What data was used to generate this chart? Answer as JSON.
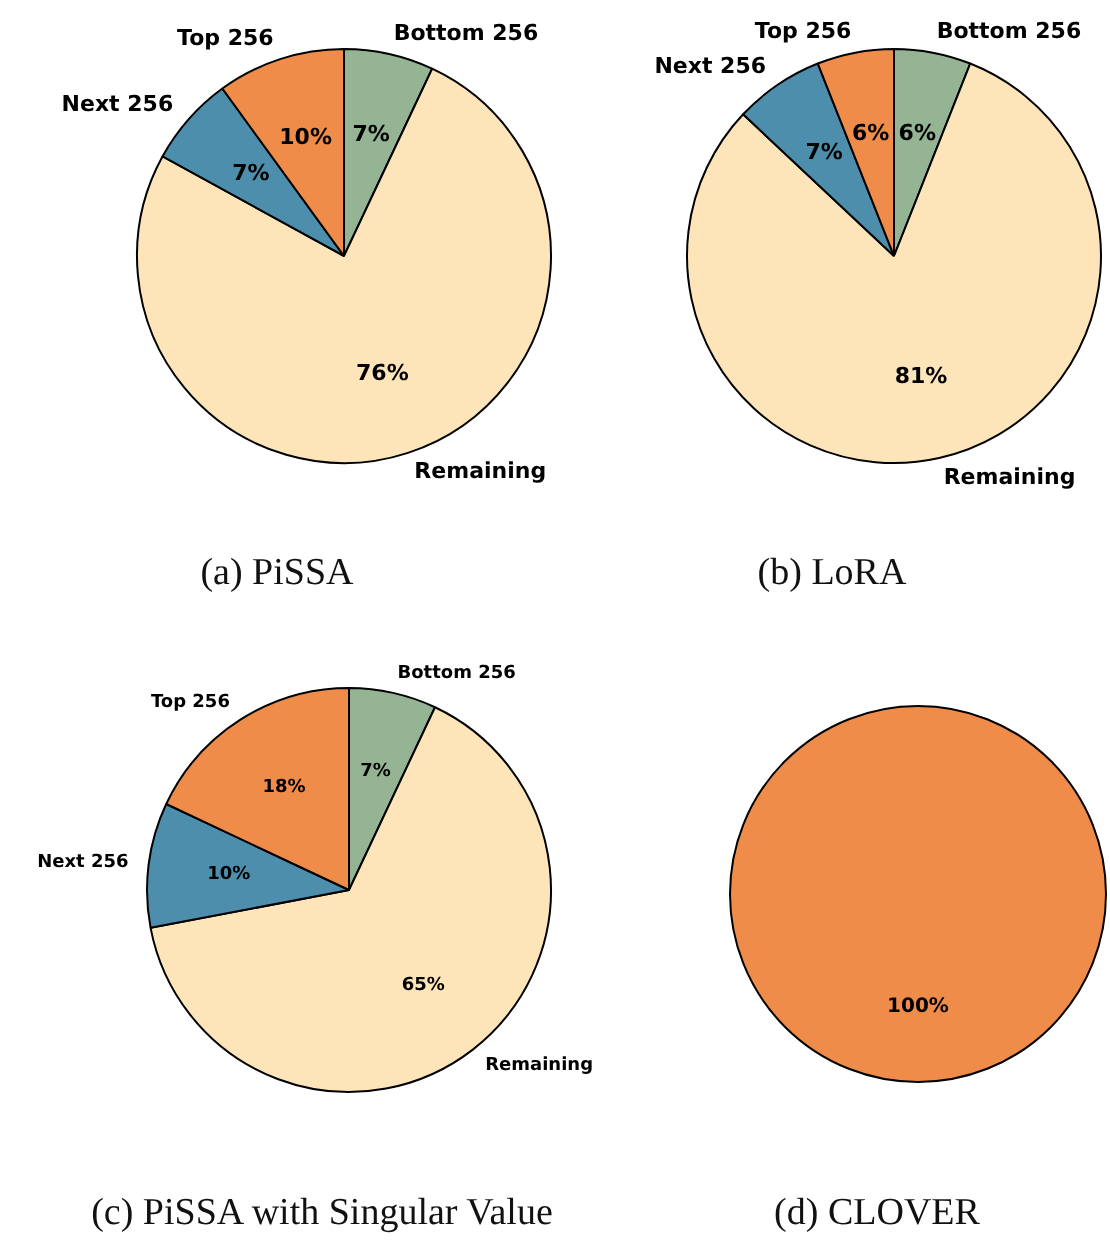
{
  "chart_data": [
    {
      "type": "pie",
      "title": "(a) PiSSA",
      "categories": [
        "Bottom 256",
        "Remaining",
        "Next 256",
        "Top 256"
      ],
      "values": [
        7,
        76,
        7,
        10
      ],
      "colors": [
        "#94b494",
        "#fde5b9",
        "#4e8ead",
        "#ef8c4a"
      ],
      "value_labels": [
        "7%",
        "76%",
        "7%",
        "10%"
      ]
    },
    {
      "type": "pie",
      "title": "(b) LoRA",
      "categories": [
        "Bottom 256",
        "Remaining",
        "Next 256",
        "Top 256"
      ],
      "values": [
        6,
        81,
        7,
        6
      ],
      "colors": [
        "#94b494",
        "#fde5b9",
        "#4e8ead",
        "#ef8c4a"
      ],
      "value_labels": [
        "6%",
        "81%",
        "7%",
        "6%"
      ]
    },
    {
      "type": "pie",
      "title": "(c) PiSSA with Singular Value",
      "categories": [
        "Bottom 256",
        "Remaining",
        "Next 256",
        "Top 256"
      ],
      "values": [
        7,
        65,
        10,
        18
      ],
      "colors": [
        "#94b494",
        "#fde5b9",
        "#4e8ead",
        "#ef8c4a"
      ],
      "value_labels": [
        "7%",
        "65%",
        "10%",
        "18%"
      ]
    },
    {
      "type": "pie",
      "title": "(d) CLOVER",
      "categories": [
        null
      ],
      "values": [
        100
      ],
      "colors": [
        "#ef8c4a"
      ],
      "value_labels": [
        "100%"
      ]
    }
  ]
}
